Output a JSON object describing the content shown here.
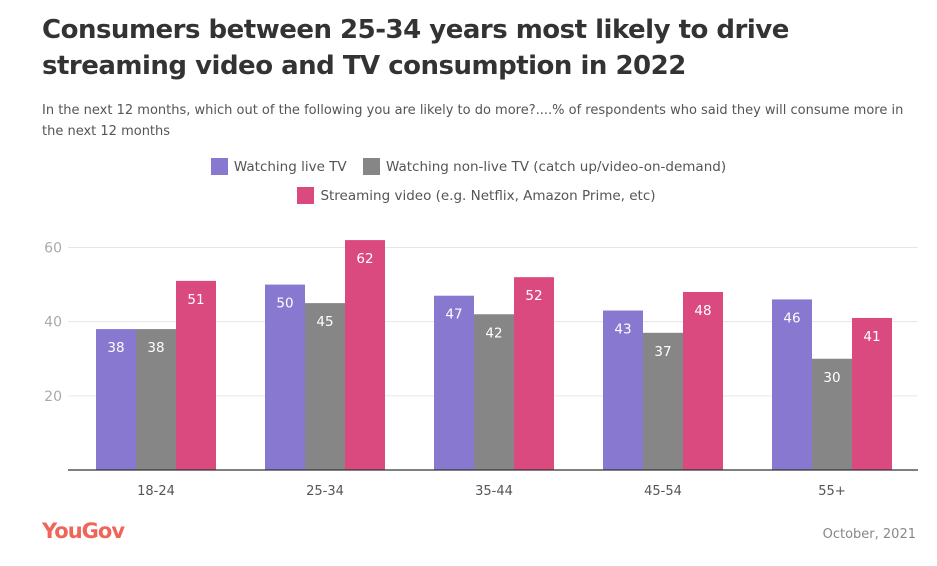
{
  "title": "Consumers between 25-34 years most likely to drive streaming video and TV consumption in 2022",
  "subtitle": "In the next 12 months, which out of the following you are likely to do more?....% of respondents who said they will consume more in the next 12 months",
  "footer": {
    "logo": "YouGov",
    "date": "October, 2021"
  },
  "chart_data": {
    "type": "bar",
    "categories": [
      "18-24",
      "25-34",
      "35-44",
      "45-54",
      "55+"
    ],
    "series": [
      {
        "name": "Watching live TV",
        "color": "#8878cf",
        "values": [
          38,
          50,
          47,
          43,
          46
        ]
      },
      {
        "name": "Watching non-live TV (catch up/video-on-demand)",
        "color": "#868686",
        "values": [
          38,
          45,
          42,
          37,
          30
        ]
      },
      {
        "name": "Streaming video (e.g. Netflix, Amazon Prime, etc)",
        "color": "#db4a7f",
        "values": [
          51,
          62,
          52,
          48,
          41
        ]
      }
    ],
    "yticks": [
      20,
      40,
      60
    ],
    "ylim": [
      0,
      60
    ],
    "grid": true,
    "legend": "top-center",
    "data_labels": true
  }
}
